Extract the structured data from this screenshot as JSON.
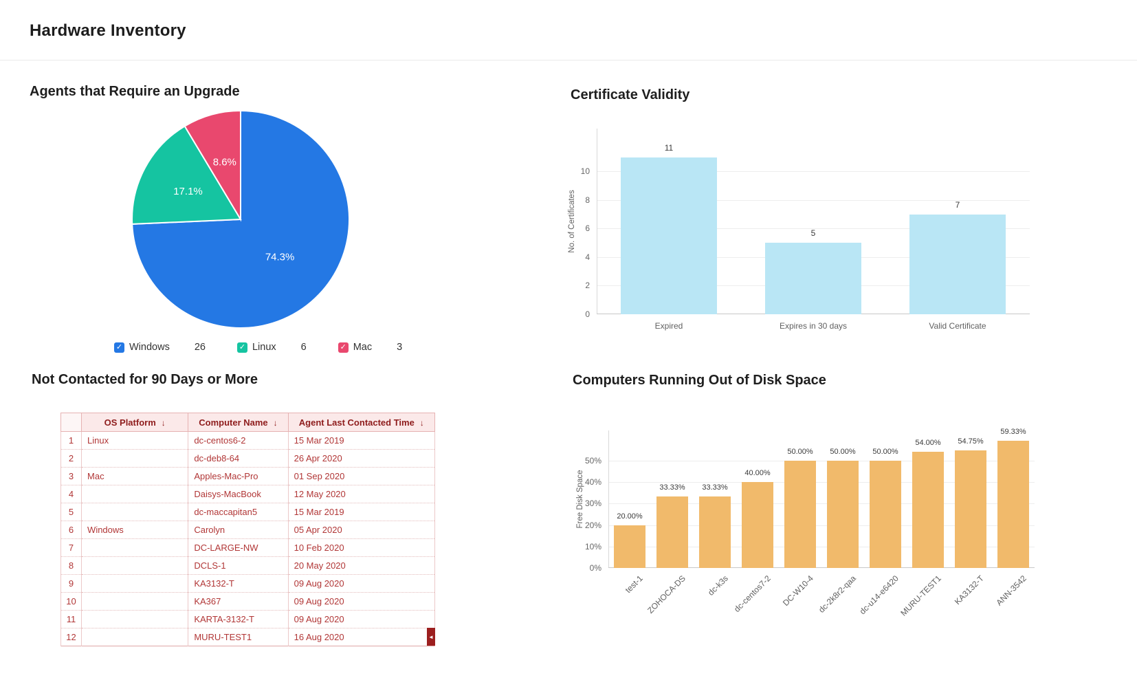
{
  "page_title": "Hardware Inventory",
  "chart_data": [
    {
      "id": "agents-upgrade-pie",
      "type": "pie",
      "title": "Agents that Require an Upgrade",
      "legend_position": "bottom",
      "slices": [
        {
          "label": "Windows",
          "count": 26,
          "pct": 74.3,
          "pct_label": "74.3%",
          "color": "#2478e4"
        },
        {
          "label": "Linux",
          "count": 6,
          "pct": 17.1,
          "pct_label": "17.1%",
          "color": "#15c4a1"
        },
        {
          "label": "Mac",
          "count": 3,
          "pct": 8.6,
          "pct_label": "8.6%",
          "color": "#e9486e"
        }
      ]
    },
    {
      "id": "certificate-validity-bar",
      "type": "bar",
      "title": "Certificate Validity",
      "categories": [
        "Expired",
        "Expires in 30 days",
        "Valid Certificate"
      ],
      "values": [
        11,
        5,
        7
      ],
      "value_labels": [
        "11",
        "5",
        "7"
      ],
      "xlabel": "",
      "ylabel": "No. of Certificates",
      "yticks": [
        0,
        2,
        4,
        6,
        8,
        10
      ],
      "ytick_labels": [
        "0",
        "2",
        "4",
        "6",
        "8",
        "10"
      ],
      "ylim": [
        0,
        13
      ],
      "grid": true,
      "legend_position": "none",
      "bar_color": "#b9e6f5"
    },
    {
      "id": "not-contacted-table",
      "type": "table",
      "title": "Not Contacted for 90 Days or More",
      "columns": [
        "OS Platform",
        "Computer Name",
        "Agent Last Contacted Time"
      ],
      "sort_icon": "↓",
      "scroll_icon": "◄",
      "rows": [
        [
          "1",
          "Linux",
          "dc-centos6-2",
          "15 Mar 2019"
        ],
        [
          "2",
          "",
          "dc-deb8-64",
          "26 Apr 2020"
        ],
        [
          "3",
          "Mac",
          "Apples-Mac-Pro",
          "01 Sep 2020"
        ],
        [
          "4",
          "",
          "Daisys-MacBook",
          "12 May 2020"
        ],
        [
          "5",
          "",
          "dc-maccapitan5",
          "15 Mar 2019"
        ],
        [
          "6",
          "Windows",
          "Carolyn",
          "05 Apr 2020"
        ],
        [
          "7",
          "",
          "DC-LARGE-NW",
          "10 Feb 2020"
        ],
        [
          "8",
          "",
          "DCLS-1",
          "20 May 2020"
        ],
        [
          "9",
          "",
          "KA3132-T",
          "09 Aug 2020"
        ],
        [
          "10",
          "",
          "KA367",
          "09 Aug 2020"
        ],
        [
          "11",
          "",
          "KARTA-3132-T",
          "09 Aug 2020"
        ],
        [
          "12",
          "",
          "MURU-TEST1",
          "16 Aug 2020"
        ]
      ]
    },
    {
      "id": "disk-space-bar",
      "type": "bar",
      "title": "Computers Running Out of Disk Space",
      "categories": [
        "test-1",
        "ZOHOCA-DS",
        "dc-k3s",
        "dc-centos7-2",
        "DC-W10-4",
        "dc-2k8r2-qaa",
        "dc-u14-e6420",
        "MURU-TEST1",
        "KA3132-T",
        "ANN-3542"
      ],
      "values": [
        20,
        33.33,
        33.33,
        40,
        50,
        50,
        50,
        54,
        54.75,
        59.33
      ],
      "value_labels": [
        "20.00%",
        "33.33%",
        "33.33%",
        "40.00%",
        "50.00%",
        "50.00%",
        "50.00%",
        "54.00%",
        "54.75%",
        "59.33%"
      ],
      "xlabel": "",
      "ylabel": "Free Disk Space",
      "yticks": [
        0,
        10,
        20,
        30,
        40,
        50
      ],
      "ytick_labels": [
        "0%",
        "10%",
        "20%",
        "30%",
        "40%",
        "50%"
      ],
      "ylim": [
        0,
        64
      ],
      "grid": true,
      "legend_position": "none",
      "bar_color": "#f1ba6b"
    }
  ]
}
